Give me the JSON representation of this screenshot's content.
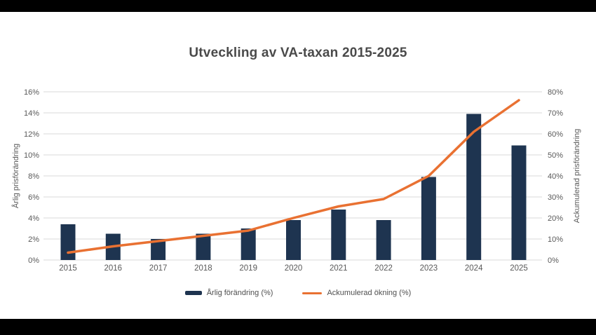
{
  "chart_data": {
    "type": "combo",
    "title": "Utveckling av VA-taxan 2015-2025",
    "categories": [
      "2015",
      "2016",
      "2017",
      "2018",
      "2019",
      "2020",
      "2021",
      "2022",
      "2023",
      "2024",
      "2025"
    ],
    "series": [
      {
        "name": "Årlig förändring (%)",
        "type": "bar",
        "axis": "left",
        "values": [
          3.4,
          2.5,
          2.0,
          2.5,
          3.0,
          3.8,
          4.8,
          3.8,
          7.9,
          13.9,
          10.9
        ]
      },
      {
        "name": "Ackumulerad ökning (%)",
        "type": "line",
        "axis": "right",
        "values": [
          3.5,
          6.5,
          9,
          11.5,
          14,
          20,
          25.5,
          29,
          40,
          61,
          76
        ]
      }
    ],
    "left_axis": {
      "label": "Årlig prisförändring",
      "min": 0,
      "max": 16,
      "step": 2,
      "tick_suffix": "%"
    },
    "right_axis": {
      "label": "Ackumulerad prisförändring",
      "min": 0,
      "max": 80,
      "step": 10,
      "tick_suffix": "%"
    },
    "legend_position": "bottom",
    "grid": true
  },
  "colors": {
    "bar": "#1E3450",
    "line": "#E97132",
    "grid": "#D9D9D9",
    "tick_text": "#595959",
    "title_text": "#4A4A4A",
    "background": "#FFFFFF",
    "letterbox": "#000000"
  }
}
